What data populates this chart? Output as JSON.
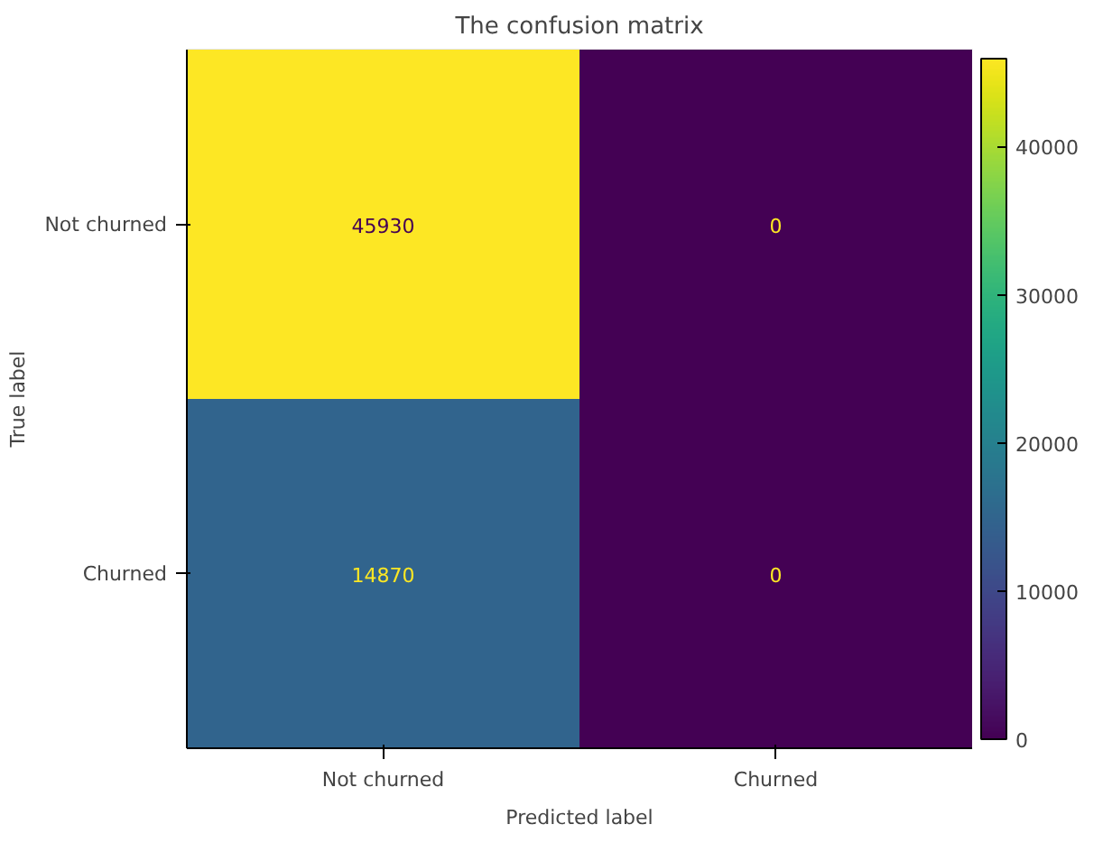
{
  "chart_data": {
    "type": "heatmap",
    "title": "The confusion matrix",
    "xlabel": "Predicted label",
    "ylabel": "True label",
    "categories": [
      "Not churned",
      "Churned"
    ],
    "y_categories": [
      "Not churned",
      "Churned"
    ],
    "cells": [
      [
        45930,
        0
      ],
      [
        14870,
        0
      ]
    ],
    "data_labels": true,
    "clim": [
      0,
      45930
    ],
    "cticks": [
      0,
      10000,
      20000,
      30000,
      40000
    ]
  }
}
